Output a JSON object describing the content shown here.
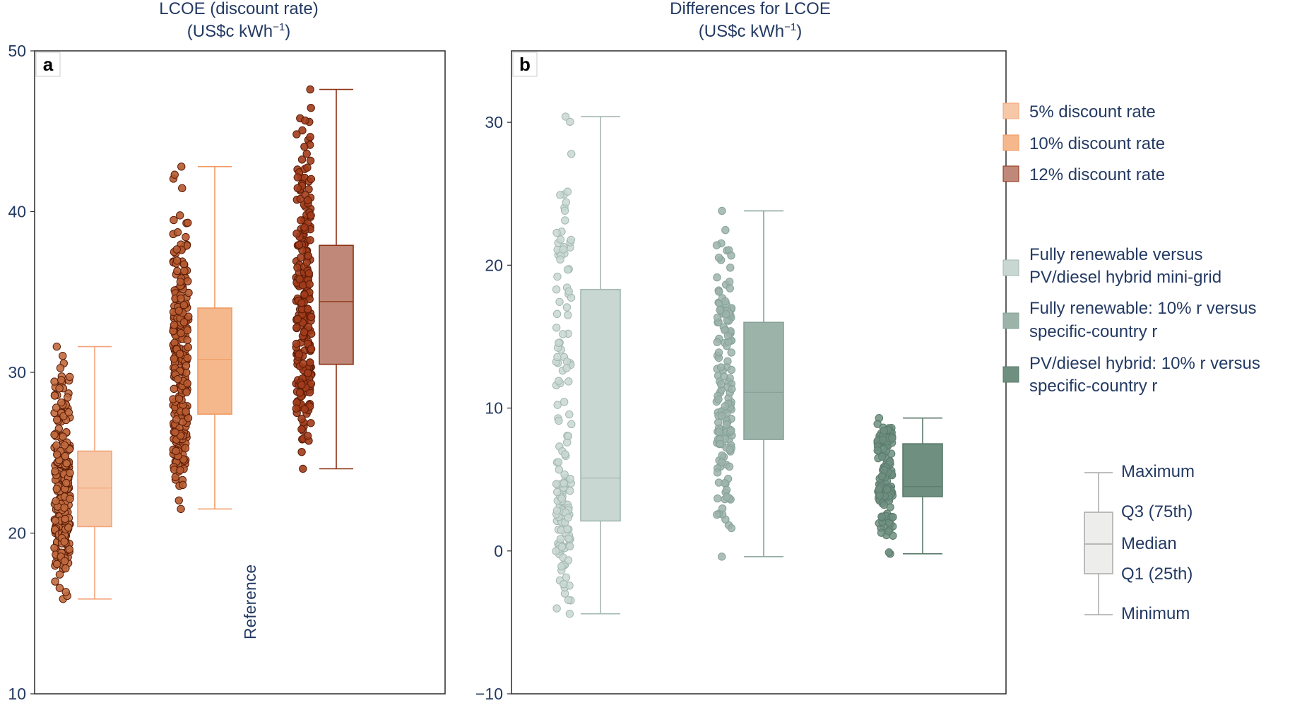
{
  "chart_data": [
    {
      "panel": "a",
      "type": "box",
      "title_line1": "LCOE (discount rate)",
      "title_line2": "(US$c kWh",
      "title_unit_sup": "−1",
      "title_line2_end": ")",
      "ylim": [
        10,
        50
      ],
      "yticks": [
        10,
        20,
        30,
        40,
        50
      ],
      "annotation": "Reference",
      "series": [
        {
          "name": "5% discount rate",
          "color": "#f7c8a8",
          "edge": "#f2a47a",
          "min": 15.9,
          "q1": 20.4,
          "median": 22.8,
          "q3": 25.1,
          "max": 31.6
        },
        {
          "name": "10% discount rate",
          "color": "#f5b88d",
          "edge": "#ef9a62",
          "min": 21.5,
          "q1": 27.4,
          "median": 30.8,
          "q3": 34.0,
          "max": 42.8
        },
        {
          "name": "12% discount rate",
          "color": "#c08878",
          "edge": "#8c3215",
          "min": 24.0,
          "q1": 30.5,
          "median": 34.4,
          "q3": 37.9,
          "max": 47.6
        }
      ]
    },
    {
      "panel": "b",
      "type": "box",
      "title_line1": "Differences for LCOE",
      "title_line2": "(US$c kWh",
      "title_unit_sup": "−1",
      "title_line2_end": ")",
      "ylim": [
        -10,
        35
      ],
      "yticks": [
        -10,
        0,
        10,
        20,
        30
      ],
      "series": [
        {
          "name_line1": "Fully renewable versus",
          "name_line2": "PV/diesel hybrid mini-grid",
          "color": "#c9d7d2",
          "edge": "#a3b8b1",
          "min": -4.4,
          "q1": 2.1,
          "median": 5.1,
          "q3": 18.3,
          "max": 30.4
        },
        {
          "name_line1": "Fully renewable: 10% r versus",
          "name_line2": "specific-country r",
          "color": "#9cb3aa",
          "edge": "#86a298",
          "min": -0.4,
          "q1": 7.8,
          "median": 11.1,
          "q3": 16.0,
          "max": 23.8
        },
        {
          "name_line1": "PV/diesel hybrid: 10% r versus",
          "name_line2": "specific-country r",
          "color": "#6f8f80",
          "edge": "#5b7b6c",
          "min": -0.2,
          "q1": 3.8,
          "median": 4.5,
          "q3": 7.5,
          "max": 9.3
        }
      ]
    }
  ],
  "legend_box": {
    "maximum": "Maximum",
    "q3": "Q3 (75th)",
    "median": "Median",
    "q1": "Q1 (25th)",
    "minimum": "Minimum"
  }
}
